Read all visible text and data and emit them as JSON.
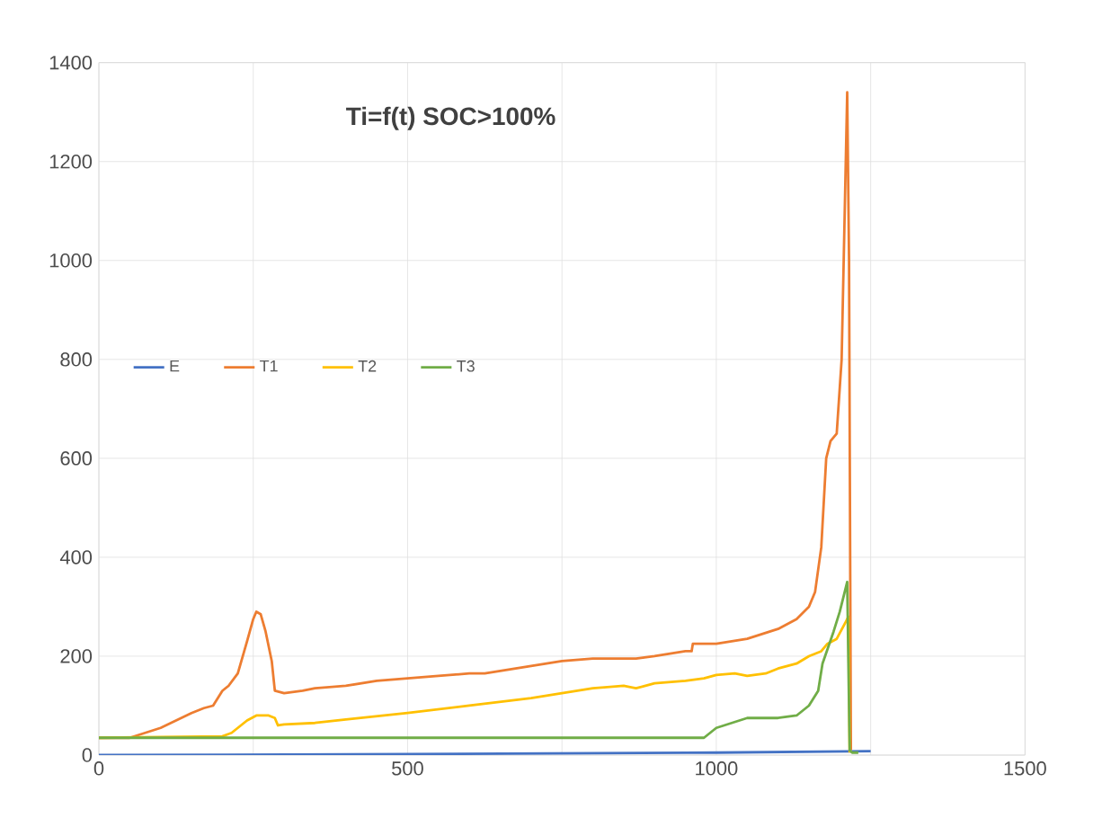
{
  "chart_data": {
    "type": "line",
    "title": "Ti=f(t) SOC>100%",
    "xlim": [
      0,
      1500
    ],
    "ylim": [
      0,
      1400
    ],
    "xticks": [
      0,
      {
        "value": 250,
        "label": null
      },
      500,
      {
        "value": 750,
        "label": null
      },
      1000,
      {
        "value": 1250,
        "label": null
      },
      1500
    ],
    "yticks": [
      0,
      200,
      400,
      600,
      800,
      1000,
      1200,
      1400
    ],
    "grid": true,
    "legend": "left",
    "marker": "none",
    "line_style": "solid",
    "series": [
      {
        "name": "E",
        "color": "#4472c4",
        "x": [
          0,
          500,
          1000,
          1250
        ],
        "values": [
          0,
          2,
          5,
          8
        ]
      },
      {
        "name": "T1",
        "color": "#ed7d31",
        "x": [
          0,
          50,
          100,
          150,
          170,
          185,
          200,
          210,
          225,
          240,
          250,
          255,
          262,
          270,
          280,
          285,
          300,
          330,
          350,
          400,
          450,
          500,
          550,
          600,
          625,
          650,
          700,
          750,
          800,
          850,
          870,
          900,
          950,
          960,
          962,
          1000,
          1050,
          1100,
          1130,
          1150,
          1160,
          1170,
          1178,
          1185,
          1195,
          1203,
          1208,
          1212,
          1215,
          1218
        ],
        "values": [
          35,
          35,
          55,
          85,
          95,
          100,
          130,
          140,
          165,
          230,
          275,
          290,
          285,
          250,
          190,
          130,
          125,
          130,
          135,
          140,
          150,
          155,
          160,
          165,
          165,
          170,
          180,
          190,
          195,
          195,
          195,
          200,
          210,
          210,
          225,
          225,
          235,
          255,
          275,
          300,
          330,
          420,
          600,
          635,
          650,
          800,
          1100,
          1340,
          1000,
          10
        ]
      },
      {
        "name": "T2",
        "color": "#ffc000",
        "x": [
          0,
          200,
          215,
          240,
          255,
          275,
          285,
          290,
          300,
          350,
          400,
          500,
          600,
          700,
          800,
          850,
          870,
          900,
          950,
          980,
          1000,
          1030,
          1050,
          1080,
          1100,
          1130,
          1150,
          1170,
          1180,
          1195,
          1210,
          1214,
          1216
        ],
        "values": [
          35,
          38,
          45,
          70,
          80,
          80,
          75,
          60,
          62,
          65,
          72,
          85,
          100,
          115,
          135,
          140,
          135,
          145,
          150,
          155,
          162,
          165,
          160,
          165,
          175,
          185,
          200,
          210,
          225,
          235,
          270,
          280,
          5
        ]
      },
      {
        "name": "T3",
        "color": "#70ad47",
        "x": [
          0,
          950,
          980,
          1000,
          1050,
          1100,
          1130,
          1150,
          1165,
          1172,
          1190,
          1200,
          1212,
          1216,
          1220,
          1230
        ],
        "values": [
          35,
          35,
          35,
          55,
          75,
          75,
          80,
          100,
          130,
          185,
          250,
          290,
          350,
          10,
          5,
          5
        ]
      }
    ]
  }
}
